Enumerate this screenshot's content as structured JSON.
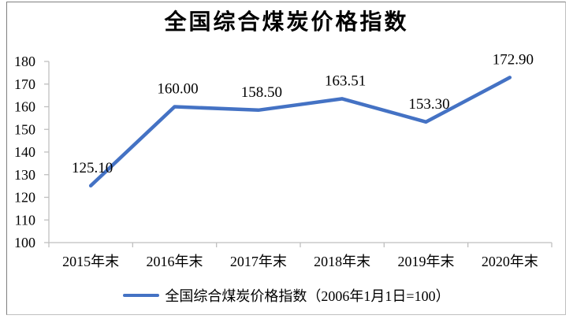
{
  "window": {
    "title": "全国综合煤炭价格指数"
  },
  "legend": {
    "label": "全国综合煤炭价格指数（2006年1月1日=100）"
  },
  "colors": {
    "line": "#4472C4",
    "axis": "#BFBFBF",
    "text": "#000000",
    "border_dark": "#7F7F7F",
    "border_light": "#BFBFBF",
    "background": "#FFFFFF"
  },
  "chart_data": {
    "type": "line",
    "title": "全国综合煤炭价格指数",
    "categories": [
      "2015年末",
      "2016年末",
      "2017年末",
      "2018年末",
      "2019年末",
      "2020年末"
    ],
    "series": [
      {
        "name": "全国综合煤炭价格指数（2006年1月1日=100）",
        "values": [
          125.1,
          160.0,
          158.5,
          163.51,
          153.3,
          172.9
        ]
      }
    ],
    "data_labels": [
      "125.10",
      "160.00",
      "158.50",
      "163.51",
      "153.30",
      "172.90"
    ],
    "xlabel": "",
    "ylabel": "",
    "ylim": [
      100,
      180
    ],
    "yticks": [
      100,
      110,
      120,
      130,
      140,
      150,
      160,
      170,
      180
    ],
    "grid": false,
    "legend_position": "bottom"
  }
}
